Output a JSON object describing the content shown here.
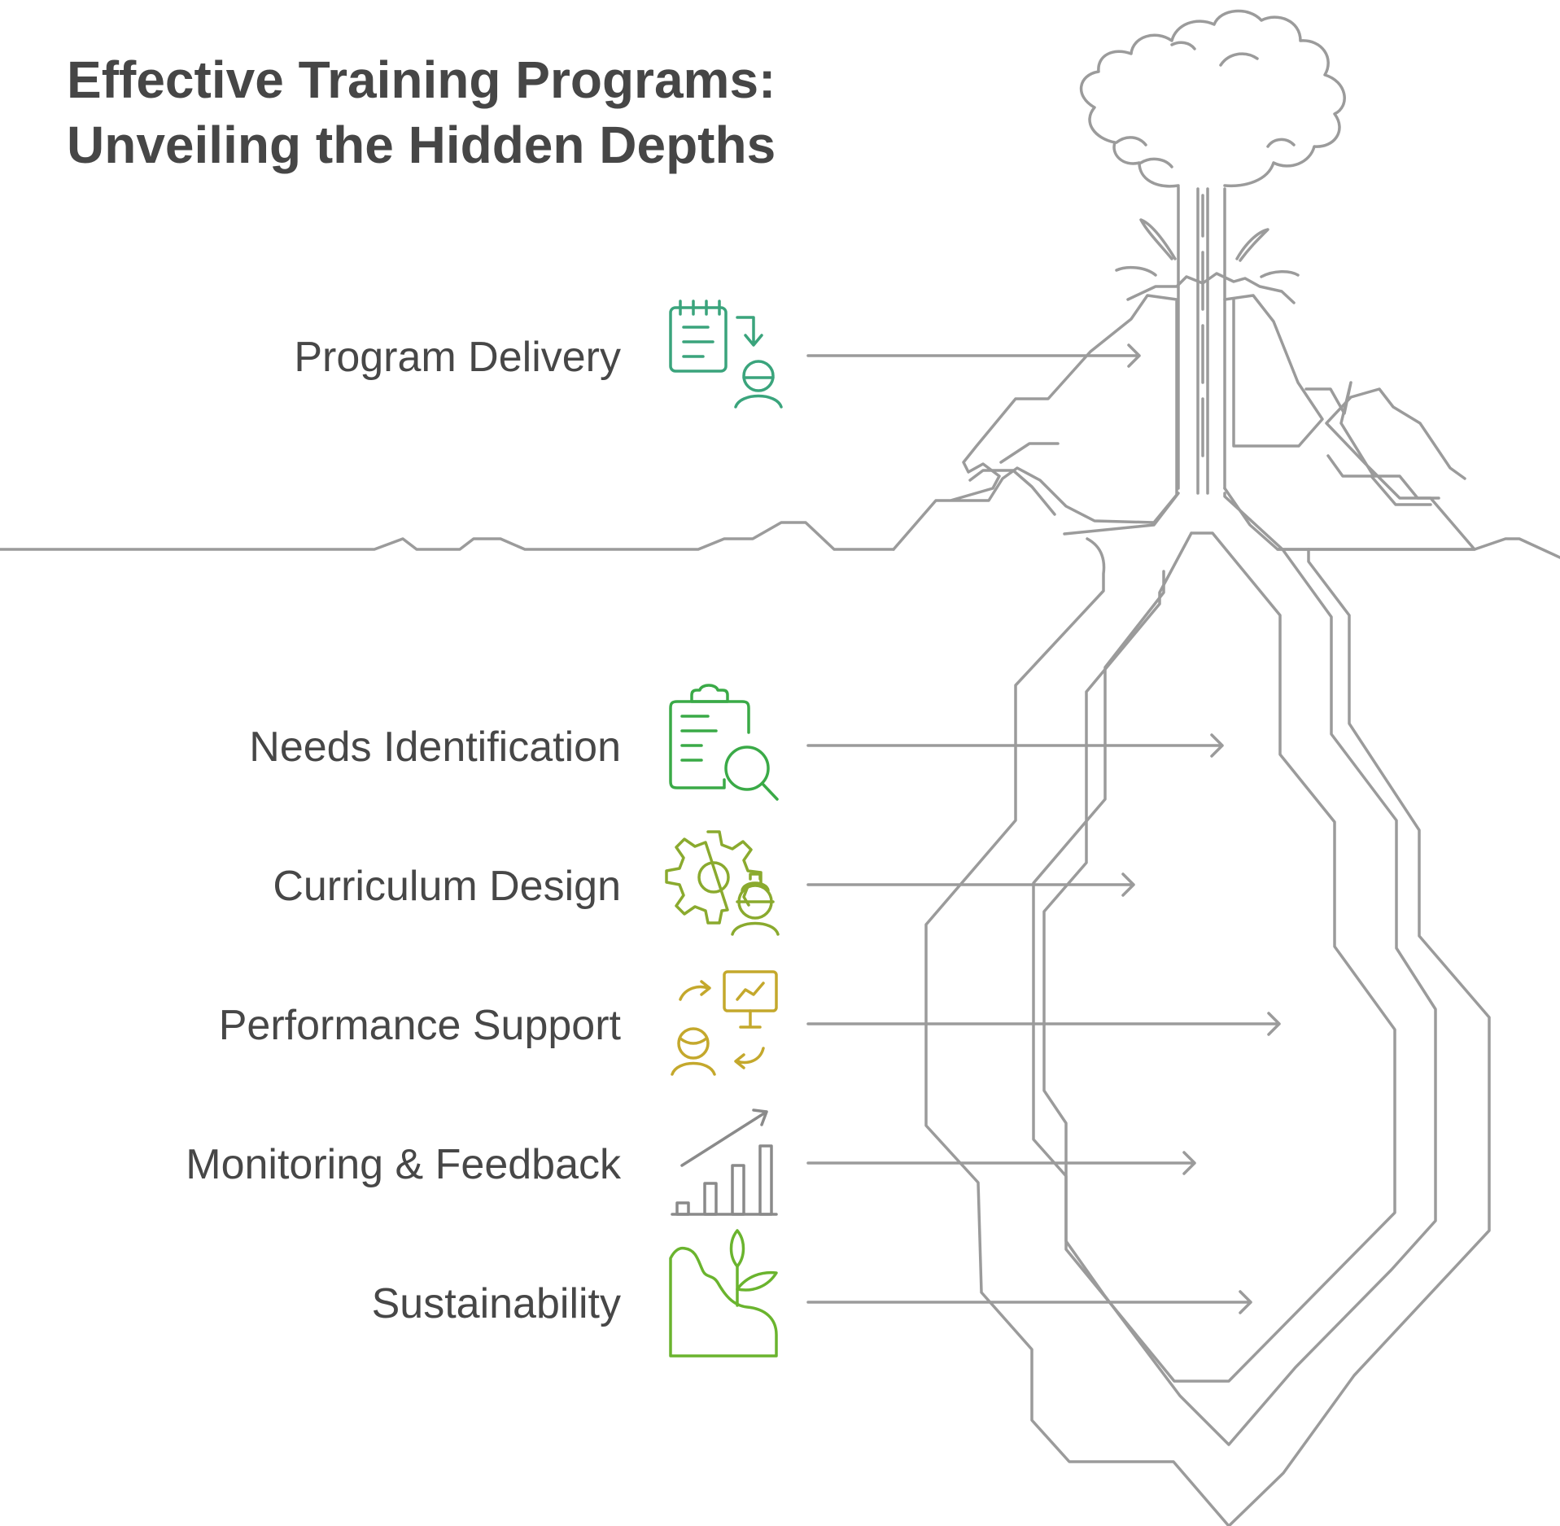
{
  "title": {
    "line1": "Effective Training Programs:",
    "line2": "Unveiling the Hidden Depths"
  },
  "items": [
    {
      "label": "Program Delivery",
      "icon": "clipboard-person-icon",
      "color": "#3aa47c"
    },
    {
      "label": "Needs Identification",
      "icon": "clipboard-search-icon",
      "color": "#3aaa47"
    },
    {
      "label": "Curriculum Design",
      "icon": "gear-engineer-icon",
      "color": "#8aaa2e"
    },
    {
      "label": "Performance Support",
      "icon": "presenter-monitor-icon",
      "color": "#c4a82c"
    },
    {
      "label": "Monitoring & Feedback",
      "icon": "bar-chart-growth-icon",
      "color": "#8a8a8a"
    },
    {
      "label": "Sustainability",
      "icon": "sprout-hill-icon",
      "color": "#6ab42e"
    }
  ],
  "colors": {
    "line": "#9b9b9b",
    "title": "#464646",
    "label": "#474747"
  }
}
